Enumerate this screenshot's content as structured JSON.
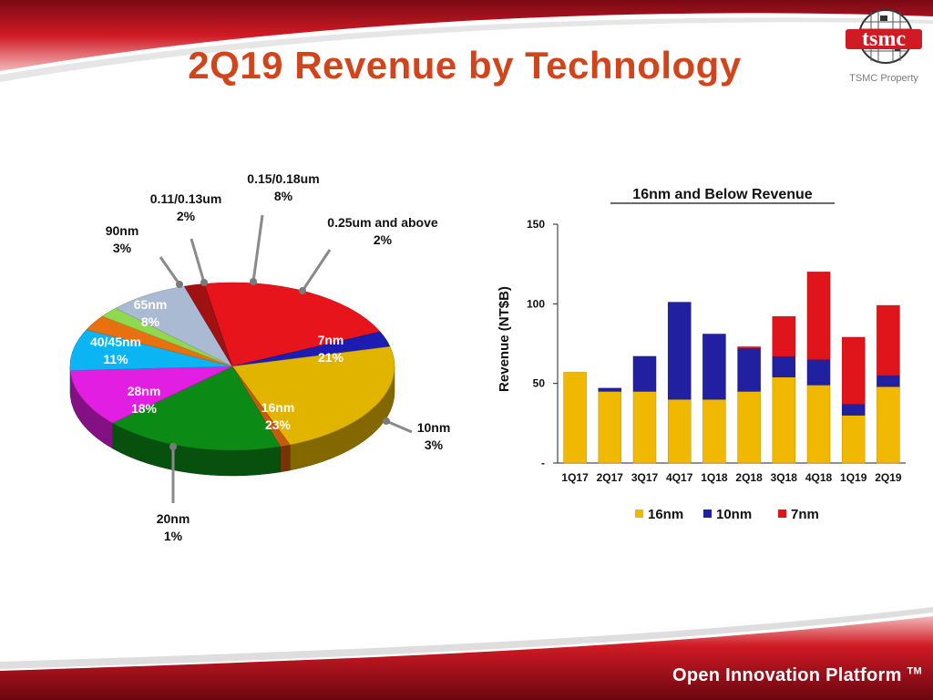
{
  "slide": {
    "title": "2Q19 Revenue by Technology",
    "property_note": "TSMC Property",
    "logo_text": "tsmc",
    "footer": "Open Innovation Platform",
    "footer_mark": "TM"
  },
  "colors": {
    "title": "#d0451b",
    "banner_red": "#c8102e"
  },
  "chart_data": [
    {
      "type": "pie",
      "title": "",
      "slices": [
        {
          "name": "7nm",
          "label": "7nm",
          "pct": 21,
          "pct_label": "21%",
          "color": "#e8141b"
        },
        {
          "name": "10nm",
          "label": "10nm",
          "pct": 3,
          "pct_label": "3%",
          "color": "#1c1cb0"
        },
        {
          "name": "16nm",
          "label": "16nm",
          "pct": 23,
          "pct_label": "23%",
          "color": "#e1b400"
        },
        {
          "name": "20nm",
          "label": "20nm",
          "pct": 1,
          "pct_label": "1%",
          "color": "#c85a0e"
        },
        {
          "name": "28nm",
          "label": "28nm",
          "pct": 18,
          "pct_label": "18%",
          "color": "#0c8a16"
        },
        {
          "name": "40/45nm",
          "label": "40/45nm",
          "pct": 11,
          "pct_label": "11%",
          "color": "#e21ee2"
        },
        {
          "name": "65nm",
          "label": "65nm",
          "pct": 8,
          "pct_label": "8%",
          "color": "#0bb4f2"
        },
        {
          "name": "90nm",
          "label": "90nm",
          "pct": 3,
          "pct_label": "3%",
          "color": "#e8710f"
        },
        {
          "name": "0.11/0.13um",
          "label": "0.11/0.13um",
          "pct": 2,
          "pct_label": "2%",
          "color": "#90d850"
        },
        {
          "name": "0.15/0.18um",
          "label": "0.15/0.18um",
          "pct": 8,
          "pct_label": "8%",
          "color": "#a9bad2"
        },
        {
          "name": "0.25um and above",
          "label": "0.25um and above",
          "pct": 2,
          "pct_label": "2%",
          "color": "#a01212"
        }
      ]
    },
    {
      "type": "bar",
      "stacked": true,
      "title": "16nm and Below Revenue",
      "ylabel": "Revenue (NT$B)",
      "xlabel": "",
      "ylim": [
        0,
        150
      ],
      "yticks": [
        {
          "value": 0,
          "label": "-"
        },
        {
          "value": 50,
          "label": "50"
        },
        {
          "value": 100,
          "label": "100"
        },
        {
          "value": 150,
          "label": "150"
        }
      ],
      "categories": [
        "1Q17",
        "2Q17",
        "3Q17",
        "4Q17",
        "1Q18",
        "2Q18",
        "3Q18",
        "4Q18",
        "1Q19",
        "2Q19"
      ],
      "series": [
        {
          "name": "16nm",
          "color": "#f0b800",
          "values": [
            57,
            45,
            45,
            40,
            40,
            45,
            54,
            49,
            30,
            48
          ]
        },
        {
          "name": "10nm",
          "color": "#2020a0",
          "values": [
            0,
            2,
            22,
            61,
            41,
            27,
            13,
            16,
            7,
            7
          ]
        },
        {
          "name": "7nm",
          "color": "#e0141b",
          "values": [
            0,
            0,
            0,
            0,
            0,
            1,
            25,
            55,
            42,
            44
          ]
        }
      ],
      "legend_position": "bottom",
      "grid": false
    }
  ]
}
